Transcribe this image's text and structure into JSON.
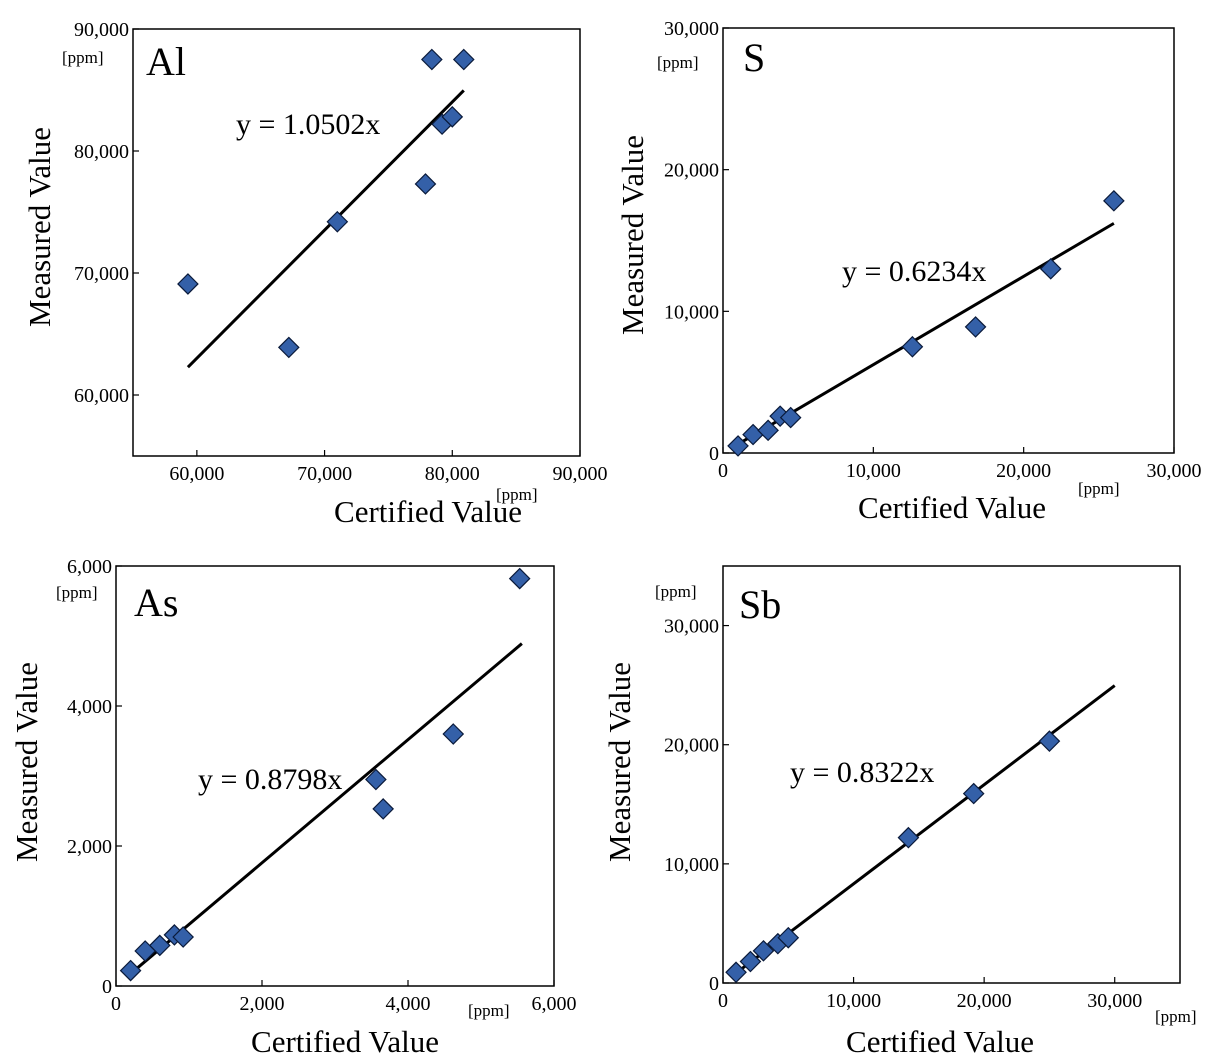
{
  "colors": {
    "marker_fill": "#3460a8",
    "marker_stroke": "#0a1a3a",
    "line": "#000000",
    "background": "#ffffff"
  },
  "chart_data": [
    {
      "type": "scatter",
      "element": "Al",
      "xlabel": "Certified Value",
      "ylabel": "Measured Value",
      "x_unit": "[ppm]",
      "y_unit": "[ppm]",
      "xlim": [
        55000,
        90000
      ],
      "ylim": [
        55000,
        90000
      ],
      "x_ticks": [
        60000,
        70000,
        80000,
        90000
      ],
      "x_tick_labels": [
        "60,000",
        "70,000",
        "80,000",
        "90,000"
      ],
      "y_ticks": [
        60000,
        70000,
        80000,
        90000
      ],
      "y_tick_labels": [
        "60,000",
        "70,000",
        "80,000",
        "90,000"
      ],
      "points": [
        [
          59300,
          69100
        ],
        [
          67200,
          63900
        ],
        [
          71000,
          74200
        ],
        [
          77900,
          77300
        ],
        [
          78400,
          87500
        ],
        [
          79200,
          82200
        ],
        [
          80000,
          82800
        ],
        [
          80900,
          87500
        ]
      ],
      "fit": {
        "equation": "y = 1.0502x",
        "slope": 1.0502,
        "x_range": [
          59300,
          80900
        ]
      },
      "grid": false
    },
    {
      "type": "scatter",
      "element": "S",
      "xlabel": "Certified Value",
      "ylabel": "Measured Value",
      "x_unit": "[ppm]",
      "y_unit": "[ppm]",
      "xlim": [
        0,
        30000
      ],
      "ylim": [
        0,
        30000
      ],
      "x_ticks": [
        0,
        10000,
        20000,
        30000
      ],
      "x_tick_labels": [
        "0",
        "10,000",
        "20,000",
        "30,000"
      ],
      "y_ticks": [
        0,
        10000,
        20000,
        30000
      ],
      "y_tick_labels": [
        "0",
        "10,000",
        "20,000",
        "30,000"
      ],
      "points": [
        [
          1000,
          500
        ],
        [
          2000,
          1300
        ],
        [
          3000,
          1600
        ],
        [
          3800,
          2600
        ],
        [
          4500,
          2500
        ],
        [
          12600,
          7500
        ],
        [
          16800,
          8900
        ],
        [
          21800,
          13000
        ],
        [
          26000,
          17800
        ]
      ],
      "fit": {
        "equation": "y = 0.6234x",
        "slope": 0.6234,
        "x_range": [
          1000,
          26000
        ]
      },
      "grid": false
    },
    {
      "type": "scatter",
      "element": "As",
      "xlabel": "Certified Value",
      "ylabel": "Measured Value",
      "x_unit": "[ppm]",
      "y_unit": "[ppm]",
      "xlim": [
        0,
        6000
      ],
      "ylim": [
        0,
        6000
      ],
      "x_ticks": [
        0,
        2000,
        4000,
        6000
      ],
      "x_tick_labels": [
        "0",
        "2,000",
        "4,000",
        "6,000"
      ],
      "y_ticks": [
        0,
        2000,
        4000,
        6000
      ],
      "y_tick_labels": [
        "0",
        "2,000",
        "4,000",
        "6,000"
      ],
      "points": [
        [
          200,
          220
        ],
        [
          400,
          500
        ],
        [
          600,
          580
        ],
        [
          800,
          730
        ],
        [
          920,
          700
        ],
        [
          3560,
          2950
        ],
        [
          3660,
          2530
        ],
        [
          4620,
          3600
        ],
        [
          5530,
          5820
        ]
      ],
      "fit": {
        "equation": "y = 0.8798x",
        "slope": 0.8798,
        "x_range": [
          200,
          5560
        ]
      },
      "grid": false
    },
    {
      "type": "scatter",
      "element": "Sb",
      "xlabel": "Certified Value",
      "ylabel": "Measured Value",
      "x_unit": "[ppm]",
      "y_unit": "[ppm]",
      "xlim": [
        0,
        35000
      ],
      "ylim": [
        0,
        35000
      ],
      "x_ticks": [
        0,
        10000,
        20000,
        30000
      ],
      "x_tick_labels": [
        "0",
        "10,000",
        "20,000",
        "30,000"
      ],
      "y_ticks": [
        0,
        10000,
        20000,
        30000
      ],
      "y_tick_labels": [
        "0",
        "10,000",
        "20,000",
        "30,000"
      ],
      "points": [
        [
          1000,
          900
        ],
        [
          2100,
          1800
        ],
        [
          3100,
          2700
        ],
        [
          4200,
          3300
        ],
        [
          5000,
          3800
        ],
        [
          14200,
          12200
        ],
        [
          19200,
          15900
        ],
        [
          25000,
          20300
        ]
      ],
      "fit": {
        "equation": "y = 0.8322x",
        "slope": 0.8322,
        "x_range": [
          1000,
          30000
        ]
      },
      "grid": false
    }
  ]
}
